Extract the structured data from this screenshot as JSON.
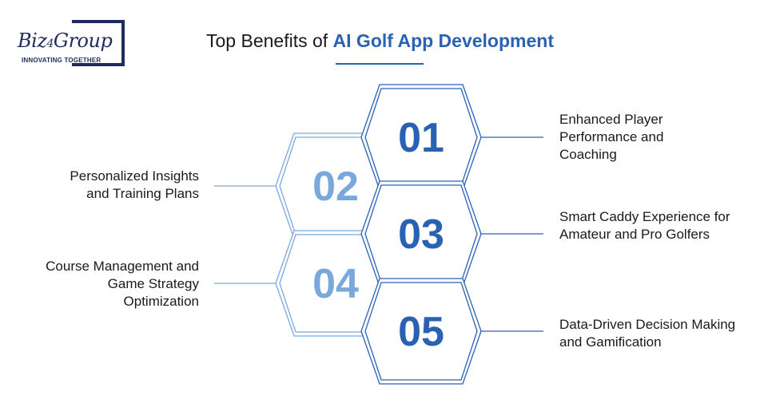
{
  "logo": {
    "name": "Biz4Group",
    "tagline": "INNOVATING TOGETHER"
  },
  "title": {
    "prefix": "Top Benefits of ",
    "highlight": "AI Golf App Development"
  },
  "colors": {
    "dark_blue": "#2a62b3",
    "light_blue": "#7aa8dd",
    "text": "#1a1a1a"
  },
  "benefits": [
    {
      "number": "01",
      "text": "Enhanced Player Performance and Coaching"
    },
    {
      "number": "02",
      "text": "Personalized Insights and Training Plans"
    },
    {
      "number": "03",
      "text": "Smart Caddy Experience for Amateur and Pro Golfers"
    },
    {
      "number": "04",
      "text": "Course Management and Game Strategy Optimization"
    },
    {
      "number": "05",
      "text": "Data-Driven Decision Making and Gamification"
    }
  ]
}
